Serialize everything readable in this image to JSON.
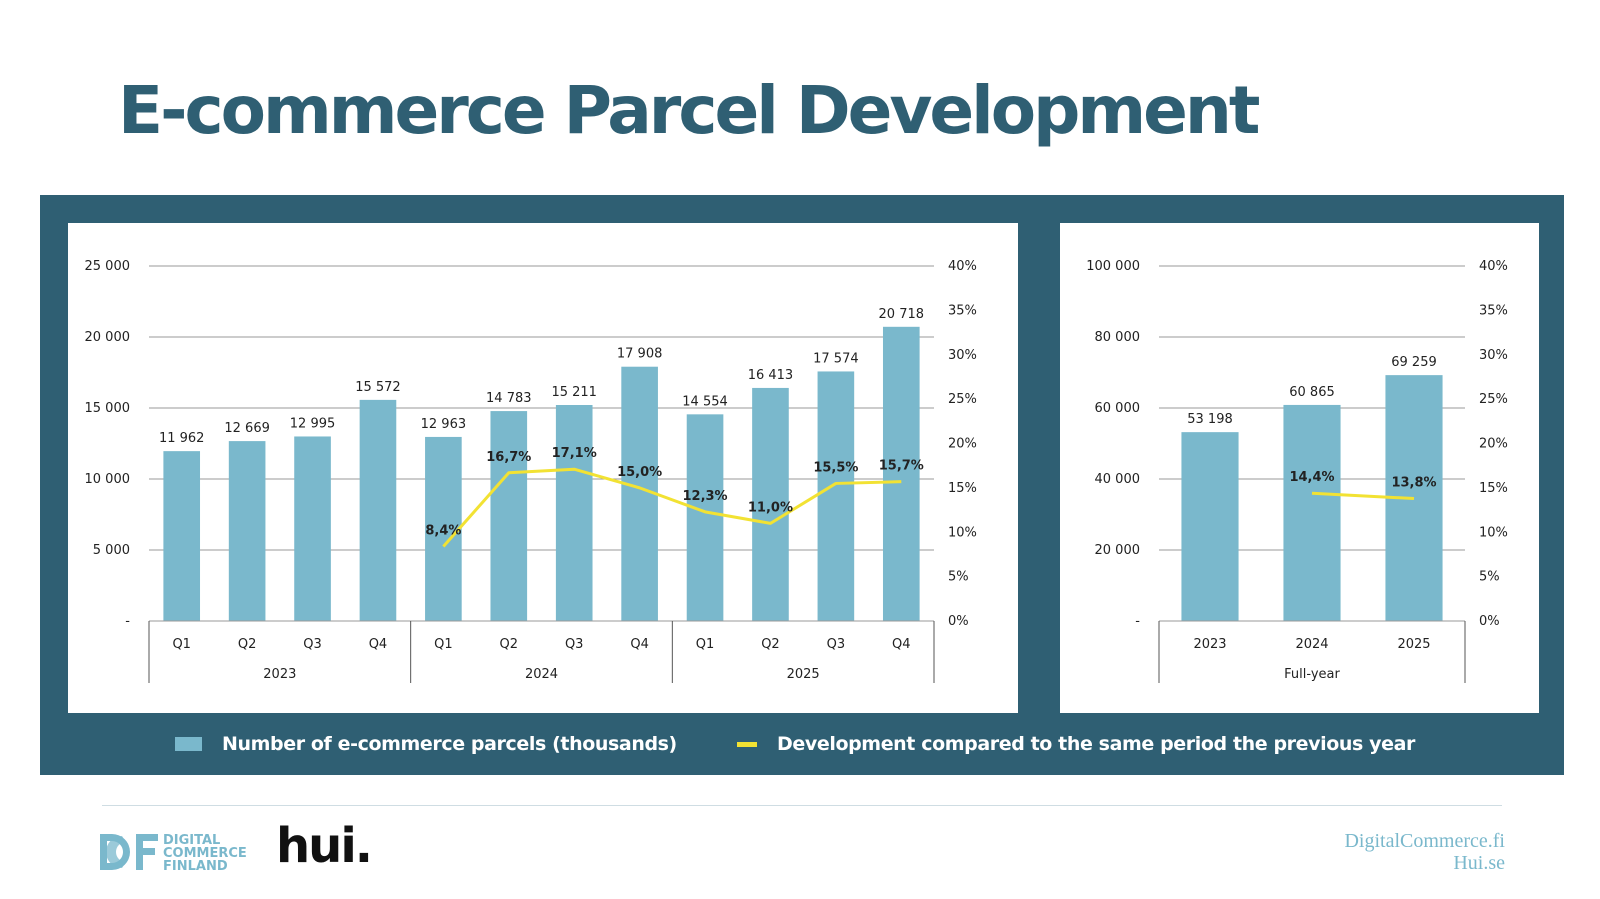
{
  "title": "E-commerce Parcel Development",
  "colors": {
    "title": "#2f5f73",
    "panel": "#2f5f73",
    "bar": "#7ab8cc",
    "line": "#f2e233",
    "footer_text": "#7ab8cc"
  },
  "legend": {
    "bars": "Number of e-commerce parcels (thousands)",
    "line": "Development compared to the same period the previous year"
  },
  "footer": {
    "logo_dcf_lines": [
      "DIGITAL",
      "COMMERCE",
      "FINLAND"
    ],
    "logo_hui": "hui.",
    "site1": "DigitalCommerce.fi",
    "site2": "Hui.se"
  },
  "chart_data": [
    {
      "type": "bar",
      "categories": [
        "Q1",
        "Q2",
        "Q3",
        "Q4",
        "Q1",
        "Q2",
        "Q3",
        "Q4",
        "Q1",
        "Q2",
        "Q3",
        "Q4"
      ],
      "groups": [
        {
          "label": "2023",
          "count": 4
        },
        {
          "label": "2024",
          "count": 4
        },
        {
          "label": "2025",
          "count": 4
        }
      ],
      "series": [
        {
          "name": "Number of e-commerce parcels (thousands)",
          "axis": "left",
          "values": [
            11962,
            12669,
            12995,
            15572,
            12963,
            14783,
            15211,
            17908,
            14554,
            16413,
            17574,
            20718
          ],
          "labels": [
            "11 962",
            "12 669",
            "12 995",
            "15 572",
            "12 963",
            "14 783",
            "15 211",
            "17 908",
            "14 554",
            "16 413",
            "17 574",
            "20 718"
          ]
        },
        {
          "name": "Development compared to the same period the previous year",
          "axis": "right",
          "kind": "line",
          "values": [
            null,
            null,
            null,
            null,
            8.4,
            16.7,
            17.1,
            15.0,
            12.3,
            11.0,
            15.5,
            15.7
          ],
          "labels": [
            "",
            "",
            "",
            "",
            "8,4%",
            "16,7%",
            "17,1%",
            "15,0%",
            "12,3%",
            "11,0%",
            "15,5%",
            "15,7%"
          ]
        }
      ],
      "y_left": {
        "min": 0,
        "max": 25000,
        "ticks": [
          "-",
          "5 000",
          "10 000",
          "15 000",
          "20 000",
          "25 000"
        ]
      },
      "y_right": {
        "min": 0,
        "max": 40,
        "ticks": [
          "0%",
          "5%",
          "10%",
          "15%",
          "20%",
          "25%",
          "30%",
          "35%",
          "40%"
        ]
      },
      "grid": true
    },
    {
      "type": "bar",
      "categories": [
        "2023",
        "2024",
        "2025"
      ],
      "groups": [
        {
          "label": "Full-year",
          "count": 3
        }
      ],
      "series": [
        {
          "name": "Number of e-commerce parcels (thousands)",
          "axis": "left",
          "values": [
            53198,
            60865,
            69259
          ],
          "labels": [
            "53 198",
            "60 865",
            "69 259"
          ]
        },
        {
          "name": "Development compared to the same period the previous year",
          "axis": "right",
          "kind": "line",
          "values": [
            null,
            14.4,
            13.8
          ],
          "labels": [
            "",
            "14,4%",
            "13,8%"
          ]
        }
      ],
      "y_left": {
        "min": 0,
        "max": 100000,
        "ticks": [
          "-",
          "20 000",
          "40 000",
          "60 000",
          "80 000",
          "100 000"
        ]
      },
      "y_right": {
        "min": 0,
        "max": 40,
        "ticks": [
          "0%",
          "5%",
          "10%",
          "15%",
          "20%",
          "25%",
          "30%",
          "35%",
          "40%"
        ]
      },
      "grid": true
    }
  ]
}
